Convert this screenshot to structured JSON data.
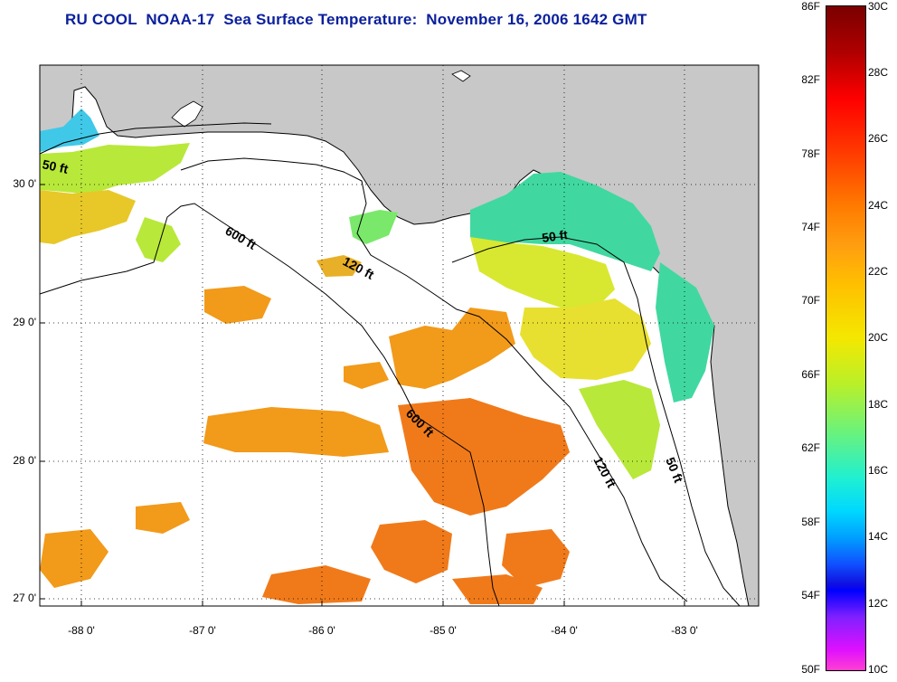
{
  "title": "RU COOL  NOAA-17  Sea Surface Temperature:  November 16, 2006 1642 GMT",
  "lat_labels": [
    "30 0'",
    "29 0'",
    "28 0'",
    "27 0'"
  ],
  "lon_labels": [
    "-88 0'",
    "-87 0'",
    "-86 0'",
    "-85 0'",
    "-84 0'",
    "-83 0'"
  ],
  "contour_labels": [
    "50 ft",
    "600 ft",
    "120 ft",
    "50 ft",
    "600 ft",
    "120 ft",
    "50 ft"
  ],
  "colorbar": {
    "fahrenheit": [
      "86F",
      "82F",
      "78F",
      "74F",
      "70F",
      "66F",
      "62F",
      "58F",
      "54F",
      "50F"
    ],
    "celsius": [
      "30C",
      "28C",
      "26C",
      "24C",
      "22C",
      "20C",
      "18C",
      "16C",
      "14C",
      "12C",
      "10C"
    ]
  },
  "colors": {
    "title": "#0a1f9c",
    "land": "#c8c8c8",
    "water_cloud": "#ffffff",
    "warm": "#f28a1a",
    "mid": "#e8e030",
    "cool": "#40d8a0",
    "cold": "#20c8f0"
  }
}
